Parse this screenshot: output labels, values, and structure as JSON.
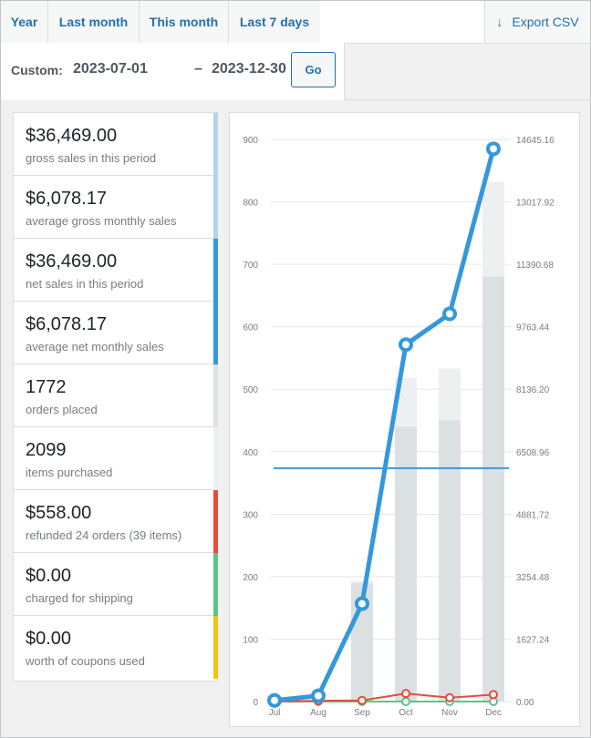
{
  "tabs": [
    {
      "label": "Year"
    },
    {
      "label": "Last month"
    },
    {
      "label": "This month"
    },
    {
      "label": "Last 7 days"
    }
  ],
  "export_label": "Export CSV",
  "custom": {
    "label": "Custom:",
    "start": "2023-07-01",
    "separator": "–",
    "end": "2023-12-30",
    "go_label": "Go"
  },
  "legend": [
    {
      "amount": "$36,469.00",
      "desc": "gross sales in this period",
      "color": "#b1d4ea"
    },
    {
      "amount": "$6,078.17",
      "desc": "average gross monthly sales",
      "color": "#b1d4ea"
    },
    {
      "amount": "$36,469.00",
      "desc": "net sales in this period",
      "color": "#3498db"
    },
    {
      "amount": "$6,078.17",
      "desc": "average net monthly sales",
      "color": "#3498db"
    },
    {
      "amount": "1772",
      "desc": "orders placed",
      "color": "#dbe1e3"
    },
    {
      "amount": "2099",
      "desc": "items purchased",
      "color": "#ecf0f1"
    },
    {
      "amount": "$558.00",
      "desc": "refunded 24 orders (39 items)",
      "color": "#e74c3c"
    },
    {
      "amount": "$0.00",
      "desc": "charged for shipping",
      "color": "#5cc488"
    },
    {
      "amount": "$0.00",
      "desc": "worth of coupons used",
      "color": "#f1c40f"
    }
  ],
  "chart_data": {
    "type": "bar",
    "categories": [
      "Jul",
      "Aug",
      "Sep",
      "Oct",
      "Nov",
      "Dec"
    ],
    "y_left_ticks": [
      "0",
      "100",
      "200",
      "300",
      "400",
      "500",
      "600",
      "700",
      "800",
      "900"
    ],
    "y_left_range": [
      0,
      900
    ],
    "y_right_ticks": [
      "0.00",
      "1627.24",
      "3254.48",
      "4881.72",
      "6508.96",
      "8136.20",
      "9763.44",
      "11390.68",
      "13017.92",
      "14645.16"
    ],
    "y_right_range": [
      0,
      14645.16
    ],
    "orders": [
      0,
      0,
      190,
      440,
      450,
      680
    ],
    "items": [
      0,
      0,
      193,
      518,
      533,
      832
    ],
    "net_sales": [
      30,
      150,
      2550,
      9300,
      10100,
      14400
    ],
    "average_net_monthly_sales": 6078.17,
    "refunds": [
      0,
      20,
      30,
      210,
      100,
      180
    ],
    "shipping": [
      0,
      0,
      0,
      0,
      0,
      0
    ],
    "colors": {
      "orders": "#dbe1e3",
      "items": "#ecf0f1",
      "net_sales": "#3498db",
      "average": "#3498db",
      "refunds": "#e74c3c",
      "shipping": "#5cc488"
    },
    "grid": true
  }
}
